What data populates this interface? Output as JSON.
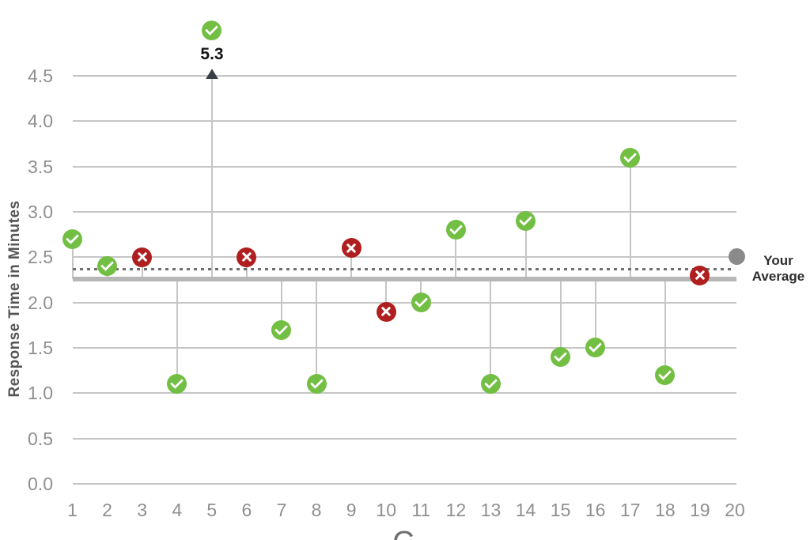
{
  "chart_data": {
    "type": "scatter",
    "title": "",
    "ylabel": "Response Time in Minutes",
    "xlabel_partial": "C",
    "ylim": [
      0,
      4.5
    ],
    "grid": true,
    "yticks": [
      "0.0",
      "0.5",
      "1.0",
      "1.5",
      "2.0",
      "2.5",
      "3.0",
      "3.5",
      "4.0",
      "4.5"
    ],
    "xticks": [
      "1",
      "2",
      "3",
      "4",
      "5",
      "6",
      "7",
      "8",
      "9",
      "10",
      "11",
      "12",
      "13",
      "14",
      "15",
      "16",
      "17",
      "18",
      "19",
      "20"
    ],
    "points": [
      {
        "x": 1,
        "value": 2.7,
        "status": "on_target"
      },
      {
        "x": 2,
        "value": 2.4,
        "status": "on_target"
      },
      {
        "x": 3,
        "value": 2.5,
        "status": "missed"
      },
      {
        "x": 4,
        "value": 1.1,
        "status": "on_target"
      },
      {
        "x": 5,
        "value": 5.3,
        "status": "on_target",
        "off_scale": true,
        "annotation": "5.3"
      },
      {
        "x": 6,
        "value": 2.5,
        "status": "missed"
      },
      {
        "x": 7,
        "value": 1.7,
        "status": "on_target"
      },
      {
        "x": 8,
        "value": 1.1,
        "status": "on_target"
      },
      {
        "x": 9,
        "value": 2.6,
        "status": "missed"
      },
      {
        "x": 10,
        "value": 1.9,
        "status": "missed"
      },
      {
        "x": 11,
        "value": 2.0,
        "status": "on_target"
      },
      {
        "x": 12,
        "value": 2.8,
        "status": "on_target"
      },
      {
        "x": 13,
        "value": 1.1,
        "status": "on_target"
      },
      {
        "x": 14,
        "value": 2.9,
        "status": "on_target"
      },
      {
        "x": 15,
        "value": 1.4,
        "status": "on_target"
      },
      {
        "x": 16,
        "value": 1.5,
        "status": "on_target"
      },
      {
        "x": 17,
        "value": 3.6,
        "status": "on_target"
      },
      {
        "x": 18,
        "value": 1.2,
        "status": "on_target"
      },
      {
        "x": 19,
        "value": 2.3,
        "status": "missed"
      }
    ],
    "average_line": {
      "value": 2.26,
      "style": "thick_gray"
    },
    "dotted_line": {
      "value": 2.37,
      "style": "dotted_gray"
    },
    "legend_marker_position": {
      "x": 20,
      "value": 2.5
    }
  },
  "legend": {
    "label": "Your Average",
    "lines": [
      "Your",
      "Average"
    ]
  },
  "colors": {
    "on_target_green": "#72bf44",
    "missed_red": "#b01f1f",
    "average_gray": "#8a8a8a",
    "gridline_gray": "#c6c6c6"
  }
}
